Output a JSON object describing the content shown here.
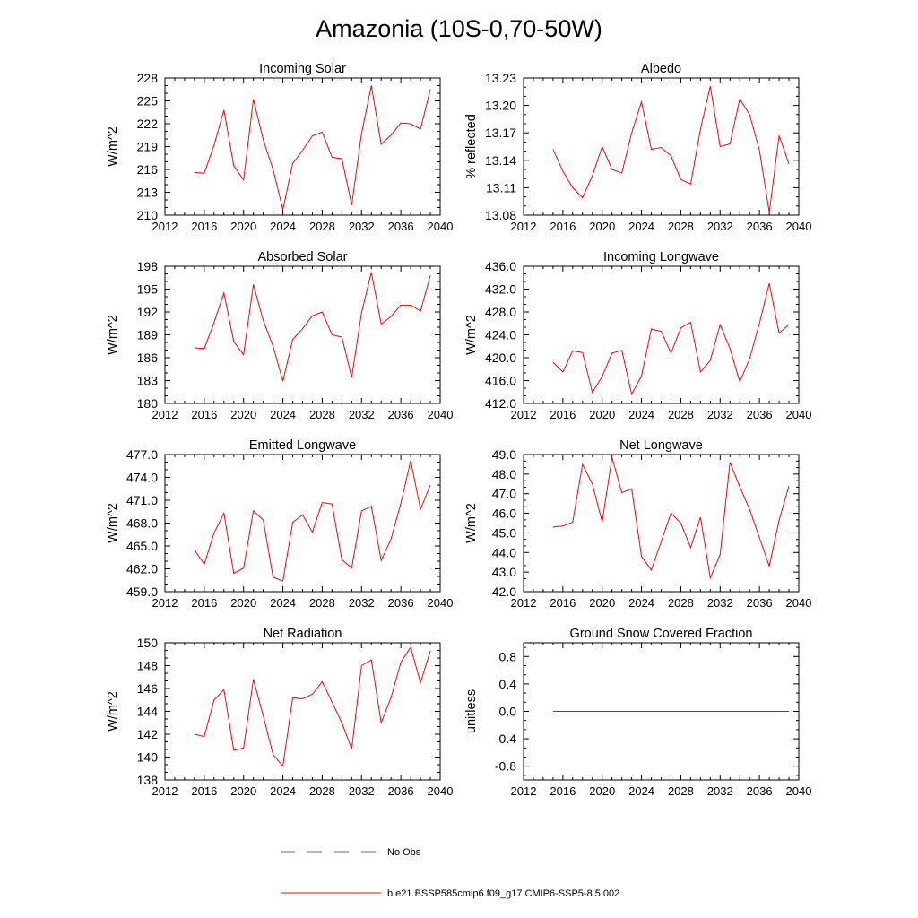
{
  "figure": {
    "title": "Amazonia (10S-0,70-50W)"
  },
  "legend": {
    "obs_label": "No Obs",
    "obs_color": "#5566cc",
    "model_label": "b.e21.BSSP585cmip6.f09_g17.CMIP6-SSP5-8.5.002",
    "model_color": "#ff0000"
  },
  "chart_data": [
    {
      "type": "line",
      "title": "Incoming Solar",
      "ylabel": "W/m^2",
      "xlim": [
        2012,
        2040
      ],
      "ylim": [
        210,
        228
      ],
      "xticks": [
        2012,
        2016,
        2020,
        2024,
        2028,
        2032,
        2036,
        2040
      ],
      "xtick_labels": [
        "2012",
        "2016",
        "2020",
        "2024",
        "2028",
        "2032",
        "2036",
        "2040"
      ],
      "yticks": [
        210,
        213,
        216,
        219,
        222,
        225,
        228
      ],
      "ytick_labels": [
        "210",
        "213",
        "216",
        "219",
        "222",
        "225",
        "228"
      ],
      "x": [
        2015,
        2016,
        2017,
        2018,
        2019,
        2020,
        2021,
        2022,
        2023,
        2024,
        2025,
        2026,
        2027,
        2028,
        2029,
        2030,
        2031,
        2032,
        2033,
        2034,
        2035,
        2036,
        2037,
        2038,
        2039
      ],
      "values": [
        215.6,
        215.5,
        219.2,
        223.8,
        216.5,
        214.6,
        225.2,
        219.9,
        216.0,
        210.7,
        216.8,
        218.5,
        220.4,
        220.9,
        217.6,
        217.4,
        211.3,
        220.7,
        227.0,
        219.3,
        220.5,
        222.1,
        222.0,
        221.3,
        226.5
      ]
    },
    {
      "type": "line",
      "title": "Albedo",
      "ylabel": "% reflected",
      "xlim": [
        2012,
        2040
      ],
      "ylim": [
        13.08,
        13.23
      ],
      "xticks": [
        2012,
        2016,
        2020,
        2024,
        2028,
        2032,
        2036,
        2040
      ],
      "xtick_labels": [
        "2012",
        "2016",
        "2020",
        "2024",
        "2028",
        "2032",
        "2036",
        "2040"
      ],
      "yticks": [
        13.08,
        13.11,
        13.14,
        13.17,
        13.2,
        13.23
      ],
      "ytick_labels": [
        "13.08",
        "13.11",
        "13.14",
        "13.17",
        "13.20",
        "13.23"
      ],
      "x": [
        2015,
        2016,
        2017,
        2018,
        2019,
        2020,
        2021,
        2022,
        2023,
        2024,
        2025,
        2026,
        2027,
        2028,
        2029,
        2030,
        2031,
        2032,
        2033,
        2034,
        2035,
        2036,
        2037,
        2038,
        2039
      ],
      "values": [
        13.152,
        13.128,
        13.11,
        13.099,
        13.123,
        13.155,
        13.13,
        13.126,
        13.17,
        13.204,
        13.152,
        13.154,
        13.145,
        13.119,
        13.114,
        13.174,
        13.221,
        13.155,
        13.158,
        13.207,
        13.19,
        13.151,
        13.083,
        13.167,
        13.136
      ]
    },
    {
      "type": "line",
      "title": "Absorbed Solar",
      "ylabel": "W/m^2",
      "xlim": [
        2012,
        2040
      ],
      "ylim": [
        180,
        198
      ],
      "xticks": [
        2012,
        2016,
        2020,
        2024,
        2028,
        2032,
        2036,
        2040
      ],
      "xtick_labels": [
        "2012",
        "2016",
        "2020",
        "2024",
        "2028",
        "2032",
        "2036",
        "2040"
      ],
      "yticks": [
        180,
        183,
        186,
        189,
        192,
        195,
        198
      ],
      "ytick_labels": [
        "180",
        "183",
        "186",
        "189",
        "192",
        "195",
        "198"
      ],
      "x": [
        2015,
        2016,
        2017,
        2018,
        2019,
        2020,
        2021,
        2022,
        2023,
        2024,
        2025,
        2026,
        2027,
        2028,
        2029,
        2030,
        2031,
        2032,
        2033,
        2034,
        2035,
        2036,
        2037,
        2038,
        2039
      ],
      "values": [
        187.3,
        187.2,
        190.6,
        194.5,
        188.1,
        186.4,
        195.6,
        190.9,
        187.5,
        182.9,
        188.4,
        189.8,
        191.5,
        192.0,
        189.0,
        188.7,
        183.4,
        191.9,
        197.2,
        190.4,
        191.4,
        192.9,
        192.9,
        192.1,
        196.8
      ]
    },
    {
      "type": "line",
      "title": "Incoming Longwave",
      "ylabel": "W/m^2",
      "xlim": [
        2012,
        2040
      ],
      "ylim": [
        412,
        436
      ],
      "xticks": [
        2012,
        2016,
        2020,
        2024,
        2028,
        2032,
        2036,
        2040
      ],
      "xtick_labels": [
        "2012",
        "2016",
        "2020",
        "2024",
        "2028",
        "2032",
        "2036",
        "2040"
      ],
      "yticks": [
        412,
        416,
        420,
        424,
        428,
        432,
        436
      ],
      "ytick_labels": [
        "412.0",
        "416.0",
        "420.0",
        "424.0",
        "428.0",
        "432.0",
        "436.0"
      ],
      "x": [
        2015,
        2016,
        2017,
        2018,
        2019,
        2020,
        2021,
        2022,
        2023,
        2024,
        2025,
        2026,
        2027,
        2028,
        2029,
        2030,
        2031,
        2032,
        2033,
        2034,
        2035,
        2036,
        2037,
        2038,
        2039
      ],
      "values": [
        419.2,
        417.5,
        421.2,
        420.9,
        413.9,
        416.7,
        420.8,
        421.3,
        413.6,
        416.8,
        425.0,
        424.6,
        420.8,
        425.2,
        426.2,
        417.5,
        419.5,
        425.8,
        421.6,
        415.8,
        419.8,
        426.0,
        433.0,
        424.3,
        425.8
      ]
    },
    {
      "type": "line",
      "title": "Emitted Longwave",
      "ylabel": "W/m^2",
      "xlim": [
        2012,
        2040
      ],
      "ylim": [
        459,
        477
      ],
      "xticks": [
        2012,
        2016,
        2020,
        2024,
        2028,
        2032,
        2036,
        2040
      ],
      "xtick_labels": [
        "2012",
        "2016",
        "2020",
        "2024",
        "2028",
        "2032",
        "2036",
        "2040"
      ],
      "yticks": [
        459,
        462,
        465,
        468,
        471,
        474,
        477
      ],
      "ytick_labels": [
        "459.0",
        "462.0",
        "465.0",
        "468.0",
        "471.0",
        "474.0",
        "477.0"
      ],
      "x": [
        2015,
        2016,
        2017,
        2018,
        2019,
        2020,
        2021,
        2022,
        2023,
        2024,
        2025,
        2026,
        2027,
        2028,
        2029,
        2030,
        2031,
        2032,
        2033,
        2034,
        2035,
        2036,
        2037,
        2038,
        2039
      ],
      "values": [
        464.5,
        462.6,
        466.7,
        469.3,
        461.4,
        462.1,
        469.6,
        468.4,
        460.9,
        460.4,
        468.1,
        469.1,
        466.8,
        470.7,
        470.5,
        463.2,
        462.1,
        469.6,
        470.2,
        463.1,
        465.9,
        470.6,
        476.2,
        469.8,
        473.0
      ]
    },
    {
      "type": "line",
      "title": "Net Longwave",
      "ylabel": "W/m^2",
      "xlim": [
        2012,
        2040
      ],
      "ylim": [
        42,
        49
      ],
      "xticks": [
        2012,
        2016,
        2020,
        2024,
        2028,
        2032,
        2036,
        2040
      ],
      "xtick_labels": [
        "2012",
        "2016",
        "2020",
        "2024",
        "2028",
        "2032",
        "2036",
        "2040"
      ],
      "yticks": [
        42,
        43,
        44,
        45,
        46,
        47,
        48,
        49
      ],
      "ytick_labels": [
        "42.0",
        "43.0",
        "44.0",
        "45.0",
        "46.0",
        "47.0",
        "48.0",
        "49.0"
      ],
      "x": [
        2015,
        2016,
        2017,
        2018,
        2019,
        2020,
        2021,
        2022,
        2023,
        2024,
        2025,
        2026,
        2027,
        2028,
        2029,
        2030,
        2031,
        2032,
        2033,
        2034,
        2035,
        2036,
        2037,
        2038,
        2039
      ],
      "values": [
        45.3,
        45.35,
        45.55,
        48.5,
        47.5,
        45.55,
        48.85,
        47.05,
        47.25,
        43.8,
        43.1,
        44.55,
        46.0,
        45.5,
        44.25,
        45.8,
        42.7,
        43.9,
        48.6,
        47.35,
        46.2,
        44.75,
        43.3,
        45.65,
        47.4
      ]
    },
    {
      "type": "line",
      "title": "Net Radiation",
      "ylabel": "W/m^2",
      "xlim": [
        2012,
        2040
      ],
      "ylim": [
        138,
        150
      ],
      "xticks": [
        2012,
        2016,
        2020,
        2024,
        2028,
        2032,
        2036,
        2040
      ],
      "xtick_labels": [
        "2012",
        "2016",
        "2020",
        "2024",
        "2028",
        "2032",
        "2036",
        "2040"
      ],
      "yticks": [
        138,
        140,
        142,
        144,
        146,
        148,
        150
      ],
      "ytick_labels": [
        "138",
        "140",
        "142",
        "144",
        "146",
        "148",
        "150"
      ],
      "x": [
        2015,
        2016,
        2017,
        2018,
        2019,
        2020,
        2021,
        2022,
        2023,
        2024,
        2025,
        2026,
        2027,
        2028,
        2029,
        2030,
        2031,
        2032,
        2033,
        2034,
        2035,
        2036,
        2037,
        2038,
        2039
      ],
      "values": [
        142.0,
        141.8,
        145.0,
        145.9,
        140.6,
        140.8,
        146.8,
        143.6,
        140.2,
        139.2,
        145.2,
        145.1,
        145.5,
        146.6,
        144.8,
        143.0,
        140.7,
        148.0,
        148.5,
        143.0,
        145.2,
        148.3,
        149.6,
        146.5,
        149.3
      ]
    },
    {
      "type": "line",
      "title": "Ground Snow Covered Fraction",
      "ylabel": "unitless",
      "xlim": [
        2012,
        2040
      ],
      "ylim": [
        -1.0,
        1.0
      ],
      "xticks": [
        2012,
        2016,
        2020,
        2024,
        2028,
        2032,
        2036,
        2040
      ],
      "xtick_labels": [
        "2012",
        "2016",
        "2020",
        "2024",
        "2028",
        "2032",
        "2036",
        "2040"
      ],
      "yticks": [
        -0.8,
        -0.4,
        0.0,
        0.4,
        0.8
      ],
      "ytick_labels": [
        "-0.8",
        "-0.4",
        "0.0",
        "0.4",
        "0.8"
      ],
      "x": [
        2015,
        2016,
        2017,
        2018,
        2019,
        2020,
        2021,
        2022,
        2023,
        2024,
        2025,
        2026,
        2027,
        2028,
        2029,
        2030,
        2031,
        2032,
        2033,
        2034,
        2035,
        2036,
        2037,
        2038,
        2039
      ],
      "values": [
        0,
        0,
        0,
        0,
        0,
        0,
        0,
        0,
        0,
        0,
        0,
        0,
        0,
        0,
        0,
        0,
        0,
        0,
        0,
        0,
        0,
        0,
        0,
        0,
        0
      ]
    }
  ]
}
